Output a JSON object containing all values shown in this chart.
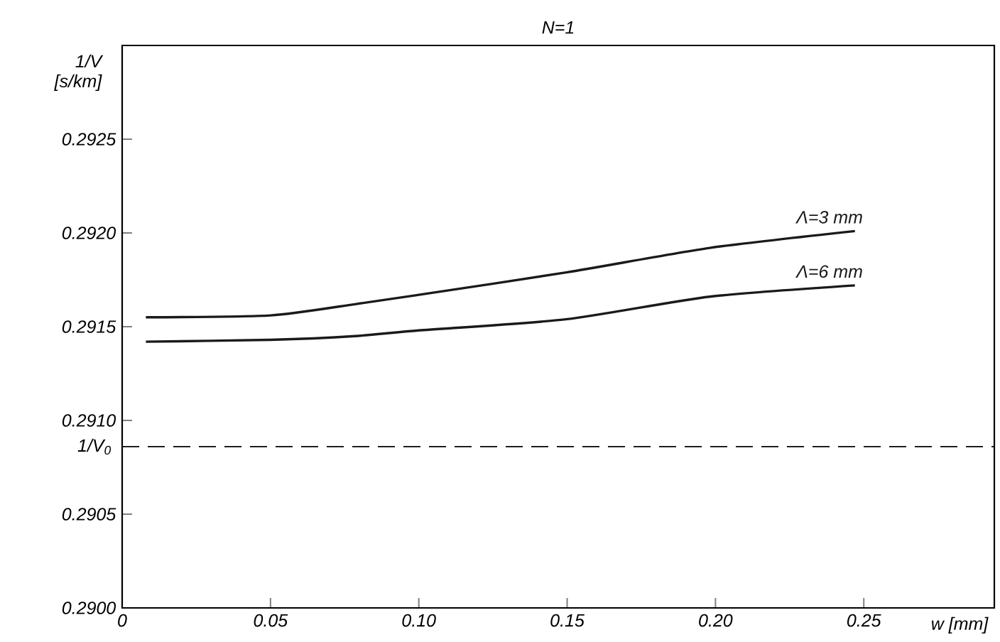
{
  "chart_data": {
    "type": "line",
    "title": "N=1",
    "xlabel": "w [mm]",
    "ylabel": "1/V [s/km]",
    "x": [
      0.008,
      0.05,
      0.0785,
      0.1,
      0.15,
      0.198,
      0.247
    ],
    "series": [
      {
        "name": "Λ=3 mm",
        "color": "#1a1a1a",
        "values": [
          0.29155,
          0.29156,
          0.29162,
          0.29167,
          0.29179,
          0.29192,
          0.29201
        ]
      },
      {
        "name": "Λ=6 mm",
        "color": "#1a1a1a",
        "values": [
          0.29142,
          0.29143,
          0.29145,
          0.29148,
          0.29154,
          0.29166,
          0.29172
        ]
      }
    ],
    "xlim": [
      0,
      0.294
    ],
    "ylim": [
      0.29,
      0.293
    ],
    "xticks": [
      0,
      0.05,
      {
        "value": 0.1,
        "label": "0.10"
      },
      0.15,
      {
        "value": 0.2,
        "label": "0.20"
      },
      0.25
    ],
    "yticks": [
      {
        "value": 0.29,
        "label": "0.2900"
      },
      {
        "value": 0.2905,
        "label": "0.2905"
      },
      {
        "value": 0.291,
        "label": "0.2910"
      },
      {
        "value": 0.2915,
        "label": "0.2915"
      },
      {
        "value": 0.292,
        "label": "0.2920"
      },
      {
        "value": 0.2925,
        "label": "0.2925"
      }
    ],
    "ref_lines": [
      {
        "axis": "y",
        "value": 0.29086,
        "label": "1/V$_{0}$",
        "line_style": "dashed"
      }
    ],
    "line_style": "solid"
  }
}
